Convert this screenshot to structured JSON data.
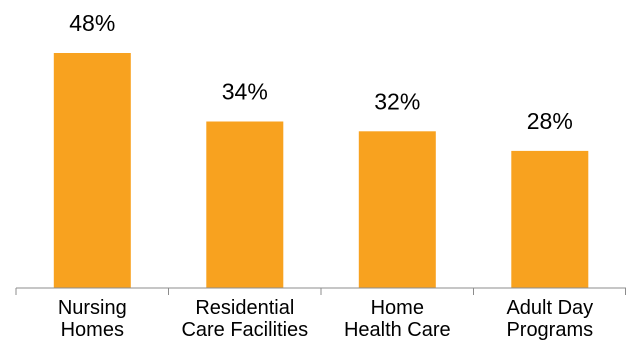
{
  "chart_data": {
    "type": "bar",
    "title": "",
    "xlabel": "",
    "ylabel": "",
    "categories": [
      [
        "Nursing",
        "Homes"
      ],
      [
        "Residential",
        "Care Facilities"
      ],
      [
        "Home",
        "Health Care"
      ],
      [
        "Adult Day",
        "Programs"
      ]
    ],
    "values": [
      48,
      34,
      32,
      28
    ],
    "data_labels": [
      "48%",
      "34%",
      "32%",
      "28%"
    ],
    "ylim": [
      0,
      55
    ],
    "grid": false,
    "legend": "none",
    "bar_color": "#F8A21F",
    "axis_color": "#8C8C8C"
  }
}
